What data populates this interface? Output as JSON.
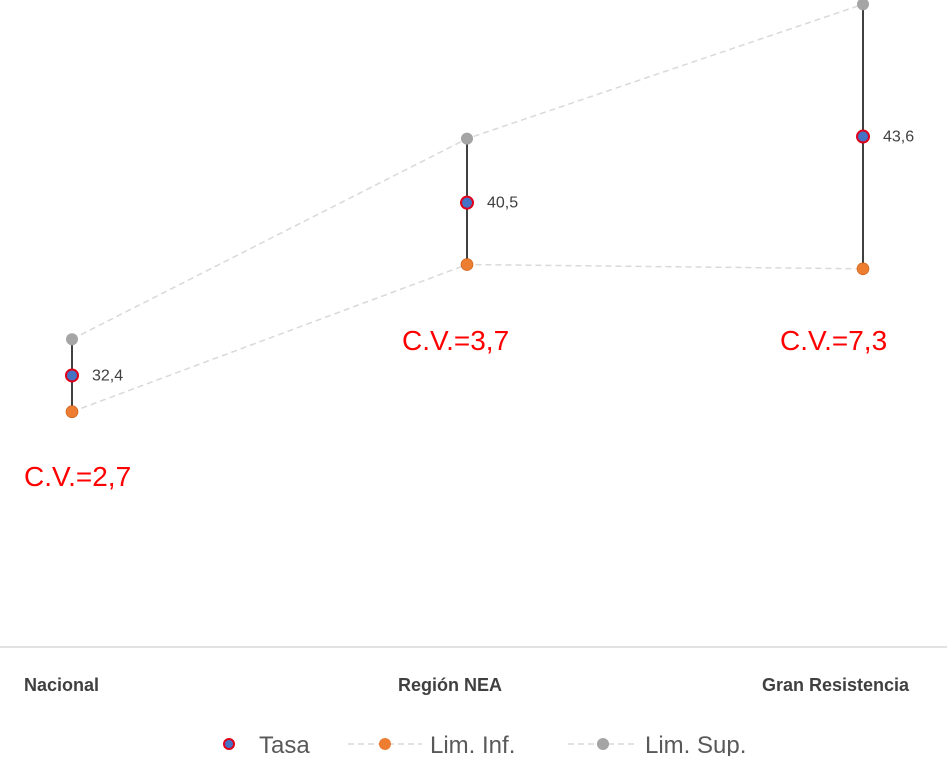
{
  "chart_data": {
    "type": "scatter",
    "categories": [
      "Nacional",
      "Región NEA",
      "Gran Resistencia"
    ],
    "series": [
      {
        "name": "Tasa",
        "values": [
          32.4,
          40.5,
          43.6
        ],
        "labels": [
          "32,4",
          "40,5",
          "43,6"
        ]
      },
      {
        "name": "Lim. Inf.",
        "values": [
          30.7,
          37.6,
          37.4
        ]
      },
      {
        "name": "Lim. Sup.",
        "values": [
          34.1,
          43.5,
          49.8
        ]
      }
    ],
    "cv_labels": [
      "C.V.=2,7",
      "C.V.=3,7",
      "C.V.=7,3"
    ],
    "ylim": [
      20,
      50
    ],
    "legend_position": "bottom",
    "grid": false
  },
  "colors": {
    "tasa_fill": "#4472C4",
    "tasa_stroke": "#E0001B",
    "lim_inf": "#ED7D31",
    "lim_sup": "#A5A5A5",
    "error_bar": "#404040",
    "dashed_line": "#D9D9D9",
    "cv_text": "#FF0000",
    "axis_line": "#D9D9D9",
    "label_text": "#404040"
  }
}
